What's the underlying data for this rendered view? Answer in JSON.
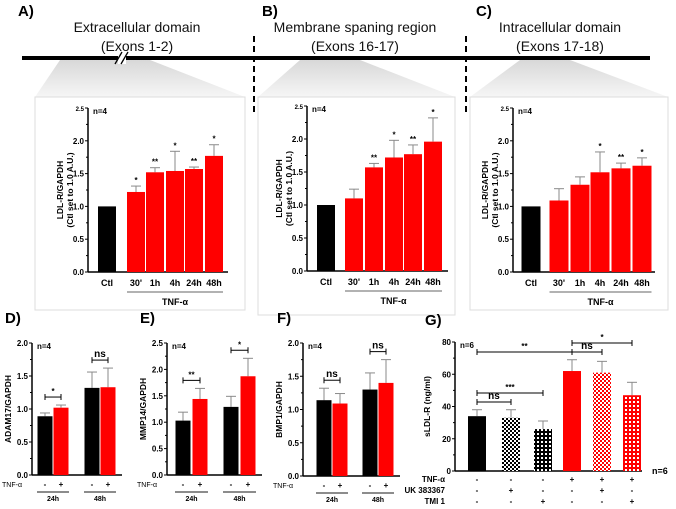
{
  "header": {
    "panels": [
      {
        "label": "A)",
        "title": "Extracellular domain",
        "subtitle": "(Exons 1-2)"
      },
      {
        "label": "B)",
        "title": "Membrane spaning region",
        "subtitle": "(Exons 16-17)"
      },
      {
        "label": "C)",
        "title": "Intracellular domain",
        "subtitle": "(Exons 17-18)"
      }
    ]
  },
  "colors": {
    "control": "#000000",
    "tnf": "#ff0000",
    "error": "#8a8a8a"
  },
  "chart_data": [
    {
      "id": "A",
      "type": "bar",
      "label": "",
      "ylabel": [
        "LDL-R/GAPDH",
        "(Ctl set to 1.0 A.U.)"
      ],
      "ylim": [
        0,
        2.5
      ],
      "yticks": [
        "0.0",
        "0.5",
        "1.0",
        "1.5",
        "2.0",
        "2.5"
      ],
      "n": "n=4",
      "group_label": "TNF-α",
      "categories": [
        "Ctl",
        "30'",
        "1h",
        "4h",
        "24h",
        "48h"
      ],
      "values": [
        1.0,
        1.22,
        1.52,
        1.54,
        1.57,
        1.77
      ],
      "errors": [
        0,
        0.09,
        0.07,
        0.3,
        0.03,
        0.17
      ],
      "significance": [
        "",
        "*",
        "**",
        "*",
        "**",
        "*"
      ]
    },
    {
      "id": "B",
      "type": "bar",
      "label": "",
      "ylabel": [
        "LDL-R/GAPDH",
        "(Ctl set to 1.0 A.U.)"
      ],
      "ylim": [
        0,
        2.5
      ],
      "yticks": [
        "0.0",
        "0.5",
        "1.0",
        "1.5",
        "2.0",
        "2.5"
      ],
      "n": "n=4",
      "group_label": "TNF-α",
      "categories": [
        "Ctl",
        "30'",
        "1h",
        "4h",
        "24h",
        "48h"
      ],
      "values": [
        1.0,
        1.1,
        1.57,
        1.72,
        1.77,
        1.96
      ],
      "errors": [
        0,
        0.14,
        0.06,
        0.26,
        0.14,
        0.36
      ],
      "significance": [
        "",
        "",
        "**",
        "*",
        "**",
        "*"
      ]
    },
    {
      "id": "C",
      "type": "bar",
      "label": "",
      "ylabel": [
        "LDL-R/GAPDH",
        "(Ctl set to 1.0 A.U.)"
      ],
      "ylim": [
        0,
        2.5
      ],
      "yticks": [
        "0.0",
        "0.5",
        "1.0",
        "1.5",
        "2.0",
        "2.5"
      ],
      "n": "n=4",
      "group_label": "TNF-α",
      "categories": [
        "Ctl",
        "30'",
        "1h",
        "4h",
        "24h",
        "48h"
      ],
      "values": [
        1.0,
        1.09,
        1.33,
        1.52,
        1.58,
        1.62
      ],
      "errors": [
        0,
        0.18,
        0.12,
        0.31,
        0.08,
        0.12
      ],
      "significance": [
        "",
        "",
        "",
        "*",
        "**",
        "*"
      ]
    },
    {
      "id": "D",
      "type": "bar",
      "label": "D)",
      "ylabel": [
        "ADAM17/GAPDH"
      ],
      "ylim": [
        0,
        2.0
      ],
      "yticks": [
        "0.0",
        "0.5",
        "1.0",
        "1.5",
        "2.0"
      ],
      "n": "n=4",
      "row_label": "TNF-α",
      "signs": [
        "-",
        "+",
        "-",
        "+"
      ],
      "groups": [
        "24h",
        "48h"
      ],
      "values": [
        0.89,
        1.02,
        1.32,
        1.33
      ],
      "errors": [
        0.05,
        0.04,
        0.24,
        0.29
      ],
      "comparisons": [
        "*",
        "ns"
      ]
    },
    {
      "id": "E",
      "type": "bar",
      "label": "E)",
      "ylabel": [
        "MMP14/GAPDH"
      ],
      "ylim": [
        0,
        2.5
      ],
      "yticks": [
        "0.0",
        "0.5",
        "1.0",
        "1.5",
        "2.0",
        "2.5"
      ],
      "n": "n=4",
      "row_label": "TNF-α",
      "signs": [
        "-",
        "+",
        "-",
        "+"
      ],
      "groups": [
        "24h",
        "48h"
      ],
      "values": [
        1.03,
        1.44,
        1.29,
        1.87
      ],
      "errors": [
        0.16,
        0.2,
        0.2,
        0.34
      ],
      "comparisons": [
        "**",
        "*"
      ]
    },
    {
      "id": "F",
      "type": "bar",
      "label": "F)",
      "ylabel": [
        "BMP1/GAPDH"
      ],
      "ylim": [
        0,
        2.0
      ],
      "yticks": [
        "0.0",
        "0.5",
        "1.0",
        "1.5",
        "2.0"
      ],
      "n": "n=4",
      "row_label": "TNF-α",
      "signs": [
        "-",
        "+",
        "-",
        "+"
      ],
      "groups": [
        "24h",
        "48h"
      ],
      "values": [
        1.14,
        1.09,
        1.3,
        1.4
      ],
      "errors": [
        0.18,
        0.15,
        0.25,
        0.35
      ],
      "comparisons": [
        "ns",
        "ns"
      ]
    },
    {
      "id": "G",
      "type": "bar",
      "label": "G)",
      "ylabel": [
        "sLDL-R (ng/ml)"
      ],
      "ylim": [
        0,
        80
      ],
      "yticks": [
        "0",
        "20",
        "40",
        "60",
        "80"
      ],
      "n": "n=6",
      "values": [
        34,
        33,
        26,
        62,
        61,
        47
      ],
      "errors": [
        4,
        5,
        5,
        7,
        7,
        8
      ],
      "rows": [
        {
          "label": "TNF-α",
          "signs": [
            "-",
            "-",
            "-",
            "+",
            "+",
            "+"
          ]
        },
        {
          "label": "UK 383367",
          "signs": [
            "-",
            "+",
            "-",
            "-",
            "+",
            "-"
          ]
        },
        {
          "label": "TMI 1",
          "signs": [
            "-",
            "-",
            "+",
            "-",
            "-",
            "+"
          ]
        }
      ],
      "comparisons": [
        {
          "from": 0,
          "to": 3,
          "label": "**"
        },
        {
          "from": 0,
          "to": 2,
          "label": "***"
        },
        {
          "from": 0,
          "to": 1,
          "label": "ns"
        },
        {
          "from": 3,
          "to": 4,
          "label": "ns"
        },
        {
          "from": 3,
          "to": 5,
          "label": "*"
        }
      ]
    }
  ]
}
